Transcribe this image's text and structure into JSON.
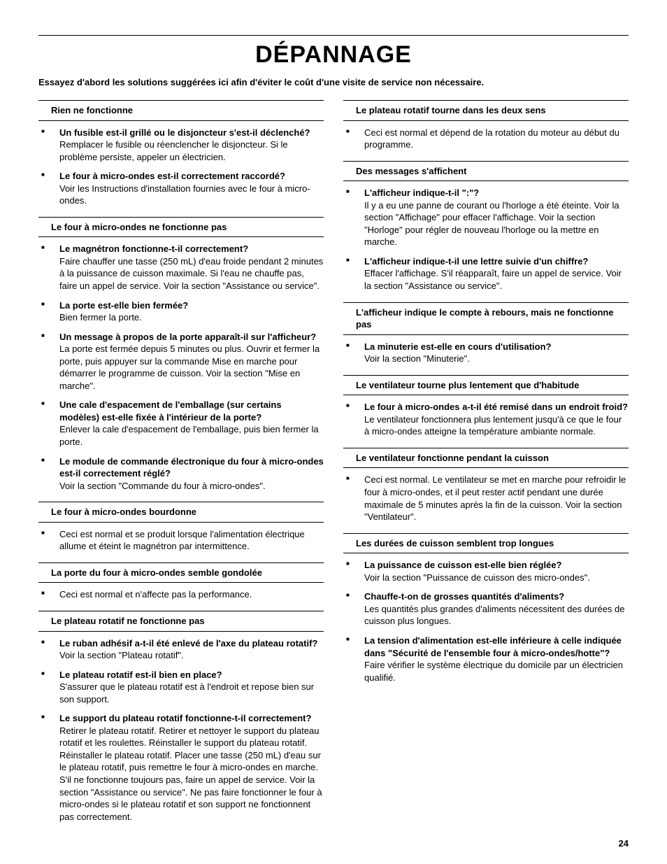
{
  "page": {
    "title": "DÉPANNAGE",
    "intro": "Essayez d'abord les solutions suggérées ici afin d'éviter le coût d'une visite de service non nécessaire.",
    "page_number": "24"
  },
  "font": {
    "body_size_pt": 10,
    "title_size_pt": 26
  },
  "colors": {
    "text": "#000000",
    "background": "#ffffff",
    "rule": "#000000"
  },
  "left": [
    {
      "heading": "Rien ne fonctionne",
      "items": [
        {
          "q": "Un fusible est-il grillé ou le disjoncteur s'est-il déclenché?",
          "a": "Remplacer le fusible ou réenclencher le disjoncteur. Si le problème persiste, appeler un électricien."
        },
        {
          "q": "Le four à micro-ondes est-il correctement raccordé?",
          "a": "Voir les Instructions d'installation fournies avec le four à micro-ondes."
        }
      ]
    },
    {
      "heading": "Le four à micro-ondes ne fonctionne pas",
      "items": [
        {
          "q": "Le magnétron fonctionne-t-il correctement?",
          "a": "Faire chauffer une tasse (250 mL) d'eau froide pendant 2 minutes à la puissance de cuisson maximale. Si l'eau ne chauffe pas, faire un appel de service. Voir la section \"Assistance ou service\"."
        },
        {
          "q": "La porte est-elle bien fermée?",
          "a": "Bien fermer la porte."
        },
        {
          "q": "Un message à propos de la porte apparaît-il sur l'afficheur?",
          "a": "La porte est fermée depuis 5 minutes ou plus. Ouvrir et fermer la porte, puis appuyer sur la commande Mise en marche pour démarrer le programme de cuisson. Voir la section \"Mise en marche\"."
        },
        {
          "q": "Une cale d'espacement de l'emballage (sur certains modèles) est-elle fixée à l'intérieur de la porte?",
          "a": "Enlever la cale d'espacement de l'emballage, puis bien fermer la porte."
        },
        {
          "q": "Le module de commande électronique du four à micro-ondes est-il correctement réglé?",
          "a": "Voir la section \"Commande du four à micro-ondes\"."
        }
      ]
    },
    {
      "heading": "Le four à micro-ondes bourdonne",
      "items": [
        {
          "q": "",
          "a": "Ceci est normal et se produit lorsque l'alimentation électrique allume et éteint le magnétron par intermittence."
        }
      ]
    },
    {
      "heading": "La porte du four à micro-ondes semble gondolée",
      "items": [
        {
          "q": "",
          "a": "Ceci est normal et n'affecte pas la performance."
        }
      ]
    },
    {
      "heading": "Le plateau rotatif ne fonctionne pas",
      "items": [
        {
          "q": "Le ruban adhésif a-t-il été enlevé de l'axe du plateau rotatif?",
          "a": "Voir la section \"Plateau rotatif\"."
        },
        {
          "q": "Le plateau rotatif est-il bien en place?",
          "a": "S'assurer que le plateau rotatif est à l'endroit et repose bien sur son support."
        },
        {
          "q": "Le support du plateau rotatif fonctionne-t-il correctement?",
          "a": "Retirer le plateau rotatif. Retirer et nettoyer le support du plateau rotatif et les roulettes. Réinstaller le support du plateau rotatif. Réinstaller le plateau rotatif. Placer une tasse (250 mL) d'eau sur le plateau rotatif, puis remettre le four à micro-ondes en marche. S'il ne fonctionne toujours pas, faire un appel de service. Voir la section \"Assistance ou service\". Ne pas faire fonctionner le four à micro-ondes si le plateau rotatif et son support ne fonctionnent pas correctement."
        }
      ]
    }
  ],
  "right": [
    {
      "heading": "Le plateau rotatif tourne dans les deux sens",
      "items": [
        {
          "q": "",
          "a": "Ceci est normal et dépend de la rotation du moteur au début du programme."
        }
      ]
    },
    {
      "heading": "Des messages s'affichent",
      "items": [
        {
          "q": "L'afficheur indique-t-il \":\"?",
          "a": "Il y a eu une panne de courant ou l'horloge a été éteinte. Voir la section \"Affichage\" pour effacer l'affichage. Voir la section \"Horloge\" pour régler de nouveau l'horloge ou la mettre en marche."
        },
        {
          "q": "L'afficheur indique-t-il une lettre suivie d'un chiffre?",
          "a": "Effacer l'affichage. S'il réapparaît, faire un appel de service. Voir la section \"Assistance ou service\"."
        }
      ]
    },
    {
      "heading": "L'afficheur indique le compte à rebours, mais ne fonctionne pas",
      "items": [
        {
          "q": "La minuterie est-elle en cours d'utilisation?",
          "a": "Voir la section \"Minuterie\"."
        }
      ]
    },
    {
      "heading": "Le ventilateur tourne plus lentement que d'habitude",
      "items": [
        {
          "q": "Le four à micro-ondes a-t-il été remisé dans un endroit froid?",
          "a": "Le ventilateur fonctionnera plus lentement jusqu'à ce que le four à micro-ondes atteigne la température ambiante normale."
        }
      ]
    },
    {
      "heading": "Le ventilateur fonctionne pendant la cuisson",
      "items": [
        {
          "q": "",
          "a": "Ceci est normal. Le ventilateur se met en marche pour refroidir le four à micro-ondes, et il peut rester actif pendant une durée maximale de 5 minutes après la fin de la cuisson. Voir la section \"Ventilateur\"."
        }
      ]
    },
    {
      "heading": "Les durées de cuisson semblent trop longues",
      "items": [
        {
          "q": "La puissance de cuisson est-elle bien réglée?",
          "a": "Voir la section \"Puissance de cuisson des micro-ondes\"."
        },
        {
          "q": "Chauffe-t-on de grosses quantités d'aliments?",
          "a": "Les quantités plus grandes d'aliments nécessitent des durées de cuisson plus longues."
        },
        {
          "q": "La tension d'alimentation est-elle inférieure à celle indiquée dans \"Sécurité de l'ensemble four à micro-ondes/hotte\"?",
          "a": "Faire vérifier le système électrique du domicile par un électricien qualifié."
        }
      ]
    }
  ]
}
